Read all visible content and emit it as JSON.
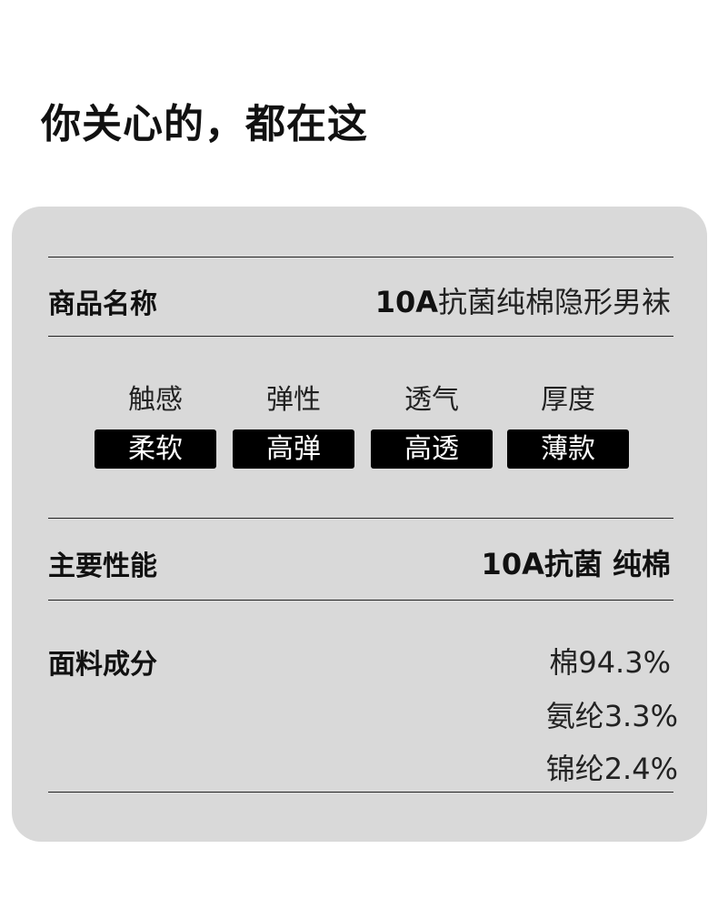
{
  "title": "你关心的，都在这",
  "product": {
    "label": "商品名称",
    "value_bold": "10A",
    "value_rest": "抗菌纯棉隐形男袜"
  },
  "attributes": [
    {
      "name": "触感",
      "value": "柔软"
    },
    {
      "name": "弹性",
      "value": "高弹"
    },
    {
      "name": "透气",
      "value": "高透"
    },
    {
      "name": "厚度",
      "value": "薄款"
    }
  ],
  "performance": {
    "label": "主要性能",
    "value": "10A抗菌 纯棉"
  },
  "fabric": {
    "label": "面料成分",
    "items": [
      "棉94.3%",
      "氨纶3.3%",
      "锦纶2.4%"
    ]
  }
}
